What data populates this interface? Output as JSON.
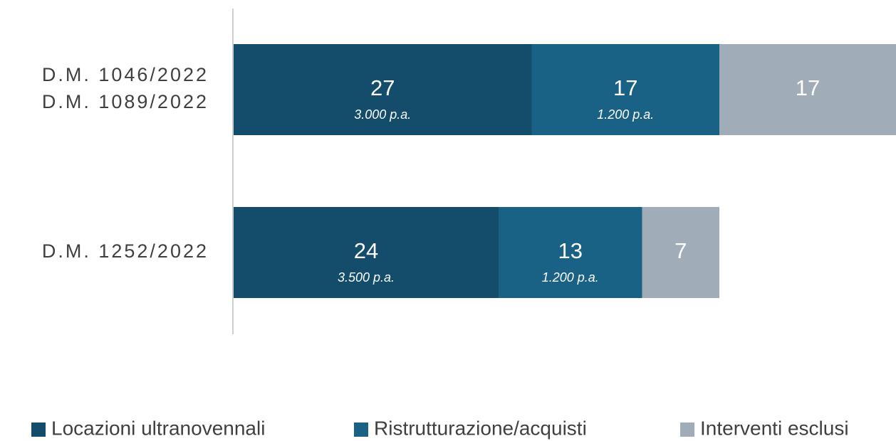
{
  "chart_data": {
    "type": "stacked_barh",
    "categories": [
      [
        "D.M. 1046/2022",
        "D.M. 1089/2022"
      ],
      [
        "D.M. 1252/2022"
      ]
    ],
    "series": [
      {
        "name": "Locazioni ultranovennali",
        "color": "#134d6b",
        "values": [
          27,
          24
        ],
        "sublabels": [
          "3.000 p.a.",
          "3.500 p.a."
        ]
      },
      {
        "name": "Ristrutturazione/acquisti",
        "color": "#1a6285",
        "values": [
          17,
          13
        ],
        "sublabels": [
          "1.200 p.a.",
          "1.200 p.a."
        ]
      },
      {
        "name": "Interventi esclusi",
        "color": "#a0adb8",
        "values": [
          17,
          7
        ]
      }
    ],
    "xlim": [
      0,
      60
    ],
    "legend": "bottom"
  }
}
